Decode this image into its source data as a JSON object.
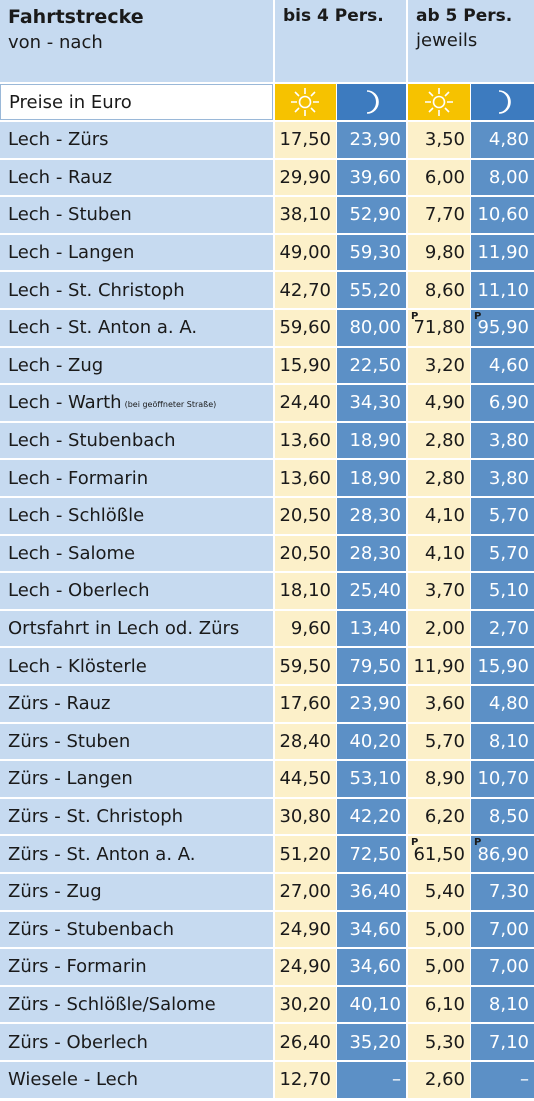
{
  "header": {
    "route_title": "Fahrtstrecke",
    "route_sub": "von - nach",
    "group1": "bis 4 Pers.",
    "group2": "ab 5 Pers.",
    "group2_sub": "jeweils",
    "prices_label": "Preise in Euro"
  },
  "table": {
    "rows": [
      {
        "route": "Lech - Zürs",
        "values": [
          "17,50",
          "23,90",
          "3,50",
          "4,80"
        ]
      },
      {
        "route": "Lech - Rauz",
        "values": [
          "29,90",
          "39,60",
          "6,00",
          "8,00"
        ]
      },
      {
        "route": "Lech - Stuben",
        "values": [
          "38,10",
          "52,90",
          "7,70",
          "10,60"
        ]
      },
      {
        "route": "Lech - Langen",
        "values": [
          "49,00",
          "59,30",
          "9,80",
          "11,90"
        ]
      },
      {
        "route": "Lech - St. Christoph",
        "values": [
          "42,70",
          "55,20",
          "8,60",
          "11,10"
        ]
      },
      {
        "route": "Lech - St. Anton a. A.",
        "values": [
          "59,60",
          "80,00",
          "71,80",
          "95,90"
        ],
        "superscripts": {
          "2": "P",
          "3": "P"
        }
      },
      {
        "route": "Lech - Zug",
        "values": [
          "15,90",
          "22,50",
          "3,20",
          "4,60"
        ]
      },
      {
        "route": "Lech - Warth",
        "note": "(bei geöffneter Straße)",
        "values": [
          "24,40",
          "34,30",
          "4,90",
          "6,90"
        ]
      },
      {
        "route": "Lech - Stubenbach",
        "values": [
          "13,60",
          "18,90",
          "2,80",
          "3,80"
        ]
      },
      {
        "route": "Lech - Formarin",
        "values": [
          "13,60",
          "18,90",
          "2,80",
          "3,80"
        ]
      },
      {
        "route": "Lech - Schlößle",
        "values": [
          "20,50",
          "28,30",
          "4,10",
          "5,70"
        ]
      },
      {
        "route": "Lech - Salome",
        "values": [
          "20,50",
          "28,30",
          "4,10",
          "5,70"
        ]
      },
      {
        "route": "Lech - Oberlech",
        "values": [
          "18,10",
          "25,40",
          "3,70",
          "5,10"
        ]
      },
      {
        "route": "Ortsfahrt in Lech od. Zürs",
        "values": [
          "9,60",
          "13,40",
          "2,00",
          "2,70"
        ]
      },
      {
        "route": "Lech - Klösterle",
        "values": [
          "59,50",
          "79,50",
          "11,90",
          "15,90"
        ]
      },
      {
        "route": "Zürs - Rauz",
        "values": [
          "17,60",
          "23,90",
          "3,60",
          "4,80"
        ]
      },
      {
        "route": "Zürs - Stuben",
        "values": [
          "28,40",
          "40,20",
          "5,70",
          "8,10"
        ]
      },
      {
        "route": "Zürs - Langen",
        "values": [
          "44,50",
          "53,10",
          "8,90",
          "10,70"
        ]
      },
      {
        "route": "Zürs - St. Christoph",
        "values": [
          "30,80",
          "42,20",
          "6,20",
          "8,50"
        ]
      },
      {
        "route": "Zürs - St. Anton a. A.",
        "values": [
          "51,20",
          "72,50",
          "61,50",
          "86,90"
        ],
        "superscripts": {
          "2": "P",
          "3": "P"
        }
      },
      {
        "route": "Zürs - Zug",
        "values": [
          "27,00",
          "36,40",
          "5,40",
          "7,30"
        ]
      },
      {
        "route": "Zürs - Stubenbach",
        "values": [
          "24,90",
          "34,60",
          "5,00",
          "7,00"
        ]
      },
      {
        "route": "Zürs - Formarin",
        "values": [
          "24,90",
          "34,60",
          "5,00",
          "7,00"
        ]
      },
      {
        "route": "Zürs - Schlößle/Salome",
        "values": [
          "30,20",
          "40,10",
          "6,10",
          "8,10"
        ]
      },
      {
        "route": "Zürs - Oberlech",
        "values": [
          "26,40",
          "35,20",
          "5,30",
          "7,10"
        ]
      },
      {
        "route": "Wiesele - Lech",
        "values": [
          "12,70",
          "–",
          "2,60",
          "–"
        ]
      }
    ]
  }
}
